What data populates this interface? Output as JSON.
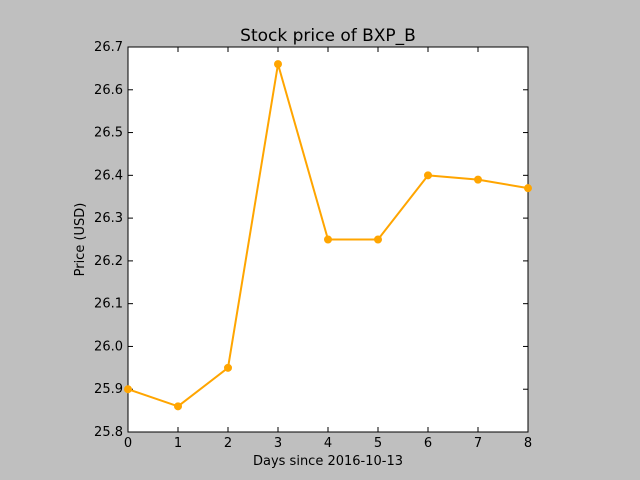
{
  "chart_data": {
    "type": "line",
    "title": "Stock price of BXP_B",
    "xlabel": "Days since 2016-10-13",
    "ylabel": "Price (USD)",
    "xlim": [
      0,
      8
    ],
    "ylim": [
      25.8,
      26.7
    ],
    "x_ticks": [
      0,
      1,
      2,
      3,
      4,
      5,
      6,
      7,
      8
    ],
    "y_ticks": [
      25.8,
      25.9,
      26.0,
      26.1,
      26.2,
      26.3,
      26.4,
      26.5,
      26.6,
      26.7
    ],
    "grid": false,
    "series": [
      {
        "color": "#ffa500",
        "x": [
          0,
          1,
          2,
          3,
          4,
          5,
          6,
          7,
          8
        ],
        "y": [
          25.9,
          25.86,
          25.95,
          26.66,
          26.25,
          26.25,
          26.4,
          26.39,
          26.37
        ]
      }
    ]
  }
}
